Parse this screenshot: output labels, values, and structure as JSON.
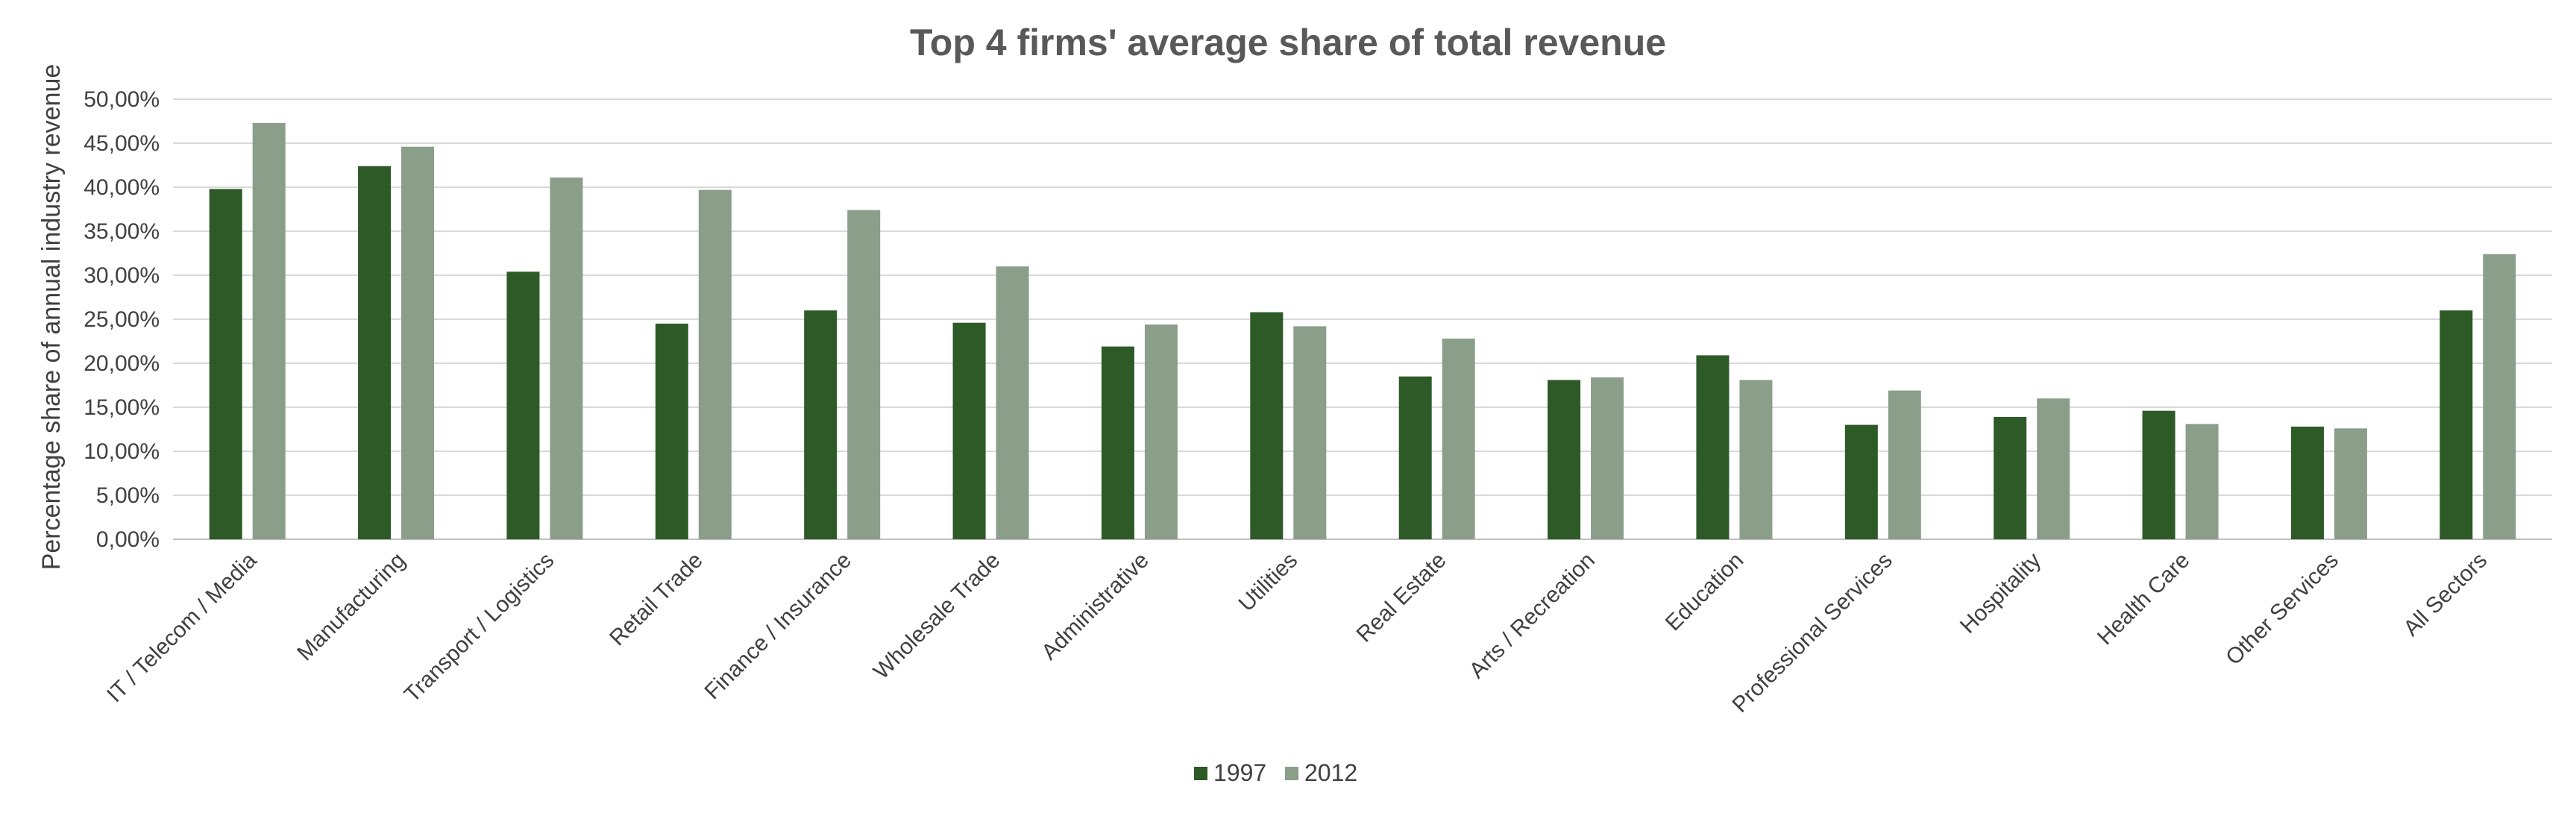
{
  "chart_data": {
    "type": "bar",
    "title": "Top 4 firms' average share of total revenue",
    "ylabel": "Percentage share of annual industry revenue",
    "xlabel": "",
    "ylim": [
      0,
      50
    ],
    "ytick_step": 5,
    "ytick_labels": [
      "0,00%",
      "5,00%",
      "10,00%",
      "15,00%",
      "20,00%",
      "25,00%",
      "30,00%",
      "35,00%",
      "40,00%",
      "45,00%",
      "50,00%"
    ],
    "grid": true,
    "legend_position": "bottom",
    "categories": [
      "IT / Telecom / Media",
      "Manufacturing",
      "Transport / Logistics",
      "Retail Trade",
      "Finance / Insurance",
      "Wholesale Trade",
      "Administrative",
      "Utilities",
      "Real Estate",
      "Arts / Recreation",
      "Education",
      "Professional Services",
      "Hospitality",
      "Health Care",
      "Other Services",
      "All Sectors"
    ],
    "series": [
      {
        "name": "1997",
        "color": "#2d5a27",
        "values": [
          39.8,
          42.4,
          30.4,
          24.5,
          26.0,
          24.6,
          21.9,
          25.8,
          18.5,
          18.1,
          20.9,
          13.0,
          13.9,
          14.6,
          12.8,
          26.0
        ]
      },
      {
        "name": "2012",
        "color": "#8a9e8a",
        "values": [
          47.3,
          44.6,
          41.1,
          39.7,
          37.4,
          31.0,
          24.4,
          24.2,
          22.8,
          18.4,
          18.1,
          16.9,
          16.0,
          13.1,
          12.6,
          32.4
        ]
      }
    ]
  }
}
